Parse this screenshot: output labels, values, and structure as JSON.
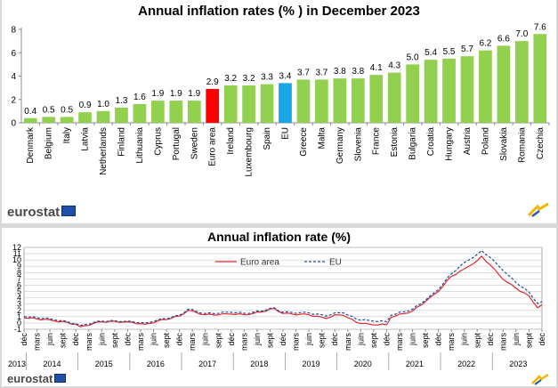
{
  "brand": {
    "logo_text": "eurostat",
    "logo_text_2": "eurostat"
  },
  "colors": {
    "bar_default": "#92d050",
    "bar_euro_area": "#ff0000",
    "bar_eu": "#1aa7e8",
    "line_euro_area": "#e0282d",
    "line_eu": "#1f4e9a"
  },
  "chart_data": [
    {
      "type": "bar",
      "title": "Annual inflation rates (% ) in December 2023",
      "categories": [
        "Denmark",
        "Belgium",
        "Italy",
        "Latvia",
        "Netherlands",
        "Finland",
        "Lithuania",
        "Cyprus",
        "Portugal",
        "Sweden",
        "Euro area",
        "Ireland",
        "Luxembourg",
        "Spain",
        "EU",
        "Greece",
        "Malta",
        "Germany",
        "Slovenia",
        "France",
        "Estonia",
        "Bulgaria",
        "Croatia",
        "Hungary",
        "Austria",
        "Poland",
        "Slovakia",
        "Romania",
        "Czechia"
      ],
      "values": [
        0.4,
        0.5,
        0.5,
        0.9,
        1.0,
        1.3,
        1.6,
        1.9,
        1.9,
        1.9,
        2.9,
        3.2,
        3.2,
        3.3,
        3.4,
        3.7,
        3.7,
        3.8,
        3.8,
        4.1,
        4.3,
        5.0,
        5.4,
        5.5,
        5.7,
        6.2,
        6.6,
        7.0,
        7.6
      ],
      "value_labels": [
        "0.4",
        "0.5",
        "0.5",
        "0.9",
        "1.0",
        "1.3",
        "1.6",
        "1.9",
        "1.9",
        "1.9",
        "2.9",
        "3.2",
        "3.2",
        "3.3",
        "3.4",
        "3.7",
        "3.7",
        "3.8",
        "3.8",
        "4.1",
        "4.3",
        "5.0",
        "5.4",
        "5.5",
        "5.7",
        "6.2",
        "6.6",
        "7.0",
        "7.6"
      ],
      "highlight": {
        "Euro area": "bar_euro_area",
        "EU": "bar_eu"
      },
      "ylim": [
        0,
        8
      ],
      "y_ticks": [
        "0",
        "2",
        "4",
        "6",
        "8"
      ],
      "grid": false
    },
    {
      "type": "line",
      "title": "Annual inflation rate (%)",
      "ylim": [
        -1,
        12
      ],
      "y_ticks": [
        "-1",
        "0",
        "1",
        "2",
        "3",
        "4",
        "5",
        "6",
        "7",
        "8",
        "9",
        "10",
        "11",
        "12"
      ],
      "grid": true,
      "legend_position": "top-center",
      "x_start": "2013-12",
      "x_end": "2023-12",
      "month_labels": [
        "déc",
        "mars",
        "juin",
        "sept"
      ],
      "years": [
        "2013",
        "2014",
        "2015",
        "2016",
        "2017",
        "2018",
        "2019",
        "2020",
        "2021",
        "2022",
        "2023"
      ],
      "series": [
        {
          "name": "Euro area",
          "color_key": "line_euro_area",
          "dash": false,
          "anchors": [
            [
              "2013-12",
              0.8
            ],
            [
              "2014-06",
              0.5
            ],
            [
              "2014-12",
              -0.2
            ],
            [
              "2015-01",
              -0.6
            ],
            [
              "2015-06",
              0.2
            ],
            [
              "2015-12",
              0.2
            ],
            [
              "2016-04",
              -0.2
            ],
            [
              "2016-12",
              1.1
            ],
            [
              "2017-02",
              2.0
            ],
            [
              "2017-06",
              1.3
            ],
            [
              "2017-12",
              1.4
            ],
            [
              "2018-04",
              1.3
            ],
            [
              "2018-10",
              2.3
            ],
            [
              "2018-12",
              1.5
            ],
            [
              "2019-06",
              1.3
            ],
            [
              "2019-10",
              0.7
            ],
            [
              "2019-12",
              1.3
            ],
            [
              "2020-02",
              1.2
            ],
            [
              "2020-05",
              0.1
            ],
            [
              "2020-08",
              -0.2
            ],
            [
              "2020-12",
              -0.3
            ],
            [
              "2021-01",
              0.9
            ],
            [
              "2021-06",
              1.9
            ],
            [
              "2021-09",
              3.4
            ],
            [
              "2021-12",
              5.0
            ],
            [
              "2022-03",
              7.4
            ],
            [
              "2022-06",
              8.6
            ],
            [
              "2022-09",
              9.9
            ],
            [
              "2022-10",
              10.6
            ],
            [
              "2022-12",
              9.2
            ],
            [
              "2023-03",
              6.9
            ],
            [
              "2023-06",
              5.5
            ],
            [
              "2023-09",
              4.3
            ],
            [
              "2023-11",
              2.4
            ],
            [
              "2023-12",
              2.9
            ]
          ]
        },
        {
          "name": "EU",
          "color_key": "line_eu",
          "dash": true,
          "anchors": [
            [
              "2013-12",
              1.0
            ],
            [
              "2014-06",
              0.7
            ],
            [
              "2014-12",
              -0.1
            ],
            [
              "2015-01",
              -0.4
            ],
            [
              "2015-06",
              0.3
            ],
            [
              "2015-12",
              0.3
            ],
            [
              "2016-04",
              0.0
            ],
            [
              "2016-12",
              1.2
            ],
            [
              "2017-02",
              2.2
            ],
            [
              "2017-06",
              1.5
            ],
            [
              "2017-12",
              1.7
            ],
            [
              "2018-04",
              1.5
            ],
            [
              "2018-10",
              2.4
            ],
            [
              "2018-12",
              1.7
            ],
            [
              "2019-06",
              1.6
            ],
            [
              "2019-10",
              1.1
            ],
            [
              "2019-12",
              1.6
            ],
            [
              "2020-02",
              1.6
            ],
            [
              "2020-05",
              0.6
            ],
            [
              "2020-08",
              0.4
            ],
            [
              "2020-12",
              0.2
            ],
            [
              "2021-01",
              1.2
            ],
            [
              "2021-06",
              2.2
            ],
            [
              "2021-09",
              3.6
            ],
            [
              "2021-12",
              5.3
            ],
            [
              "2022-03",
              7.8
            ],
            [
              "2022-06",
              9.6
            ],
            [
              "2022-09",
              10.9
            ],
            [
              "2022-10",
              11.5
            ],
            [
              "2022-12",
              10.4
            ],
            [
              "2023-03",
              8.3
            ],
            [
              "2023-06",
              6.4
            ],
            [
              "2023-09",
              4.9
            ],
            [
              "2023-11",
              3.1
            ],
            [
              "2023-12",
              3.4
            ]
          ]
        }
      ]
    }
  ]
}
